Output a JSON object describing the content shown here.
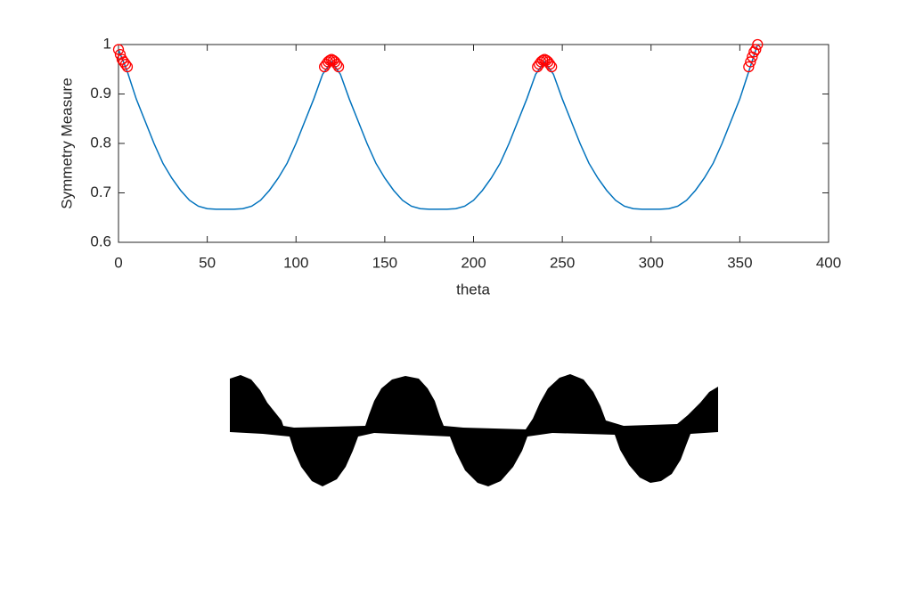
{
  "chart_data": {
    "type": "line",
    "xlabel": "theta",
    "ylabel": "Symmetry Measure",
    "xlim": [
      0,
      400
    ],
    "ylim": [
      0.6,
      1
    ],
    "xticks": [
      0,
      50,
      100,
      150,
      200,
      250,
      300,
      350,
      400
    ],
    "yticks": [
      0.6,
      0.7,
      0.8,
      0.9,
      1
    ],
    "color": "#0072bd",
    "x": [
      0,
      5,
      10,
      15,
      20,
      25,
      30,
      35,
      40,
      45,
      50,
      55,
      60,
      65,
      70,
      75,
      80,
      85,
      90,
      95,
      100,
      105,
      110,
      115,
      120,
      125,
      130,
      135,
      140,
      145,
      150,
      155,
      160,
      165,
      170,
      175,
      180,
      185,
      190,
      195,
      200,
      205,
      210,
      215,
      220,
      225,
      230,
      235,
      240,
      245,
      250,
      255,
      260,
      265,
      270,
      275,
      280,
      285,
      290,
      295,
      300,
      305,
      310,
      315,
      320,
      325,
      330,
      335,
      340,
      345,
      350,
      355,
      360
    ],
    "values": [
      0.99,
      0.945,
      0.89,
      0.845,
      0.8,
      0.76,
      0.73,
      0.705,
      0.685,
      0.673,
      0.668,
      0.667,
      0.667,
      0.667,
      0.668,
      0.673,
      0.685,
      0.705,
      0.73,
      0.76,
      0.8,
      0.845,
      0.89,
      0.94,
      0.965,
      0.94,
      0.89,
      0.845,
      0.8,
      0.76,
      0.73,
      0.705,
      0.685,
      0.673,
      0.668,
      0.667,
      0.667,
      0.667,
      0.668,
      0.673,
      0.685,
      0.705,
      0.73,
      0.76,
      0.8,
      0.845,
      0.89,
      0.94,
      0.965,
      0.94,
      0.89,
      0.845,
      0.8,
      0.76,
      0.73,
      0.705,
      0.685,
      0.673,
      0.668,
      0.667,
      0.667,
      0.667,
      0.668,
      0.673,
      0.685,
      0.705,
      0.73,
      0.76,
      0.8,
      0.845,
      0.89,
      0.945,
      1.0
    ],
    "markers": {
      "color": "#ff0000",
      "x": [
        0,
        1,
        2,
        3,
        4,
        5,
        116,
        117,
        118,
        119,
        120,
        121,
        122,
        123,
        124,
        236,
        237,
        238,
        239,
        240,
        241,
        242,
        243,
        244,
        355,
        356,
        357,
        358,
        359,
        360
      ],
      "values": [
        0.99,
        0.98,
        0.97,
        0.965,
        0.96,
        0.955,
        0.955,
        0.96,
        0.965,
        0.968,
        0.97,
        0.968,
        0.965,
        0.96,
        0.955,
        0.955,
        0.96,
        0.965,
        0.968,
        0.97,
        0.968,
        0.965,
        0.96,
        0.955,
        0.955,
        0.965,
        0.975,
        0.985,
        0.99,
        1.0
      ]
    }
  }
}
